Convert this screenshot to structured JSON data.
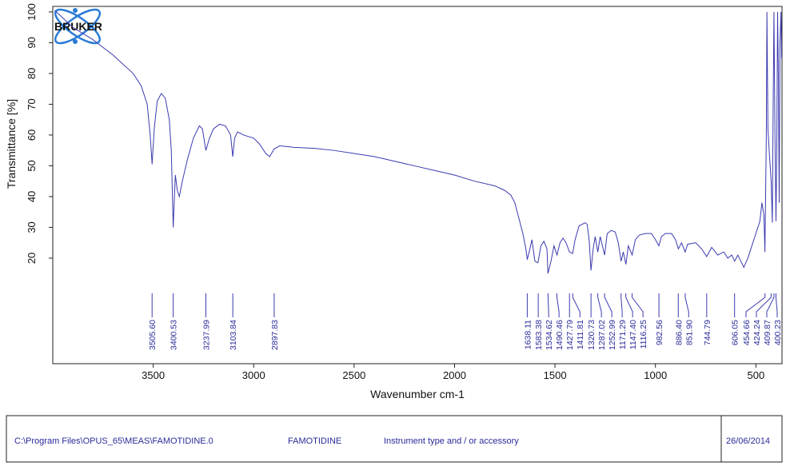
{
  "chart_data": {
    "type": "line",
    "xlabel": "Wavenumber cm-1",
    "ylabel": "Transmittance [%]",
    "logo": "BRUKER",
    "xlim": [
      4000,
      370
    ],
    "xticks": [
      3500,
      3000,
      2500,
      2000,
      1500,
      1000,
      500
    ],
    "ylim": [
      -14.3,
      101.8
    ],
    "yticks": [
      20,
      30,
      40,
      50,
      60,
      70,
      80,
      90,
      100
    ],
    "series": [
      {
        "color": "#3b3bb0",
        "x": [
          3990,
          3900,
          3800,
          3700,
          3600,
          3560,
          3530,
          3515,
          3505.6,
          3495,
          3480,
          3460,
          3440,
          3420,
          3410,
          3400.5,
          3390,
          3380,
          3370,
          3355,
          3330,
          3300,
          3270,
          3255,
          3238,
          3220,
          3200,
          3170,
          3140,
          3115,
          3104,
          3095,
          3080,
          3050,
          3000,
          2970,
          2940,
          2920,
          2898,
          2870,
          2800,
          2700,
          2600,
          2500,
          2400,
          2300,
          2200,
          2100,
          2000,
          1900,
          1800,
          1750,
          1720,
          1700,
          1680,
          1660,
          1645,
          1638,
          1625,
          1615,
          1600,
          1585,
          1570,
          1555,
          1540,
          1535,
          1520,
          1505,
          1490,
          1475,
          1460,
          1445,
          1428,
          1412,
          1400,
          1380,
          1350,
          1340,
          1330,
          1321,
          1310,
          1300,
          1287,
          1275,
          1253,
          1240,
          1220,
          1200,
          1185,
          1171,
          1160,
          1147,
          1135,
          1116,
          1100,
          1080,
          1050,
          1020,
          1000,
          983,
          970,
          950,
          920,
          900,
          886,
          870,
          852,
          840,
          800,
          770,
          745,
          720,
          690,
          660,
          640,
          620,
          606,
          590,
          560,
          540,
          520,
          500,
          480,
          470,
          460,
          455,
          448,
          445,
          440,
          432,
          424,
          418,
          414,
          410,
          405,
          400,
          396,
          392,
          388,
          384,
          380,
          375,
          372
        ],
        "values": [
          100.5,
          95,
          91,
          86,
          80,
          76,
          70,
          60,
          50.5,
          62,
          71,
          73.5,
          72,
          65,
          55,
          30,
          47,
          42,
          40,
          45,
          52,
          59,
          63,
          62,
          55,
          59,
          62,
          63.5,
          63,
          60,
          53,
          59,
          61,
          60,
          59,
          57,
          54,
          53,
          55.5,
          56.5,
          56,
          55.7,
          55,
          54,
          53,
          51.5,
          50,
          48.5,
          47,
          45,
          43.5,
          42,
          40.5,
          38,
          33,
          28,
          23,
          19.5,
          23,
          26,
          19,
          18.5,
          24,
          25.5,
          23,
          15,
          19,
          24,
          21,
          25,
          26.5,
          25,
          22,
          21.5,
          26,
          30.5,
          31.5,
          31,
          26,
          16,
          23,
          27,
          22,
          27,
          21,
          28,
          29,
          28.5,
          25,
          19,
          22,
          18,
          24,
          21,
          26,
          27.5,
          28,
          28,
          26,
          24,
          27,
          28,
          28,
          26,
          23,
          25,
          22,
          24.5,
          25,
          23,
          20.5,
          23.5,
          21,
          22,
          20,
          21,
          19,
          21,
          17,
          20,
          24,
          28,
          32,
          38,
          34,
          22,
          60,
          100,
          62,
          53,
          45,
          31.5,
          70,
          100,
          60,
          32,
          55,
          100,
          80,
          38,
          90,
          100,
          85
        ]
      }
    ],
    "peaks": {
      "values": [
        3505.6,
        3400.53,
        3237.99,
        3103.84,
        2897.83,
        1638.11,
        1583.38,
        1534.62,
        1490.46,
        1427.79,
        1411.81,
        1320.73,
        1287.02,
        1252.99,
        1171.29,
        1147.4,
        1116.25,
        982.56,
        886.4,
        851.9,
        744.79,
        606.05,
        454.66,
        424.24,
        409.87,
        400.23
      ],
      "value_labels": [
        "3505.60",
        "3400.53",
        "3237.99",
        "3103.84",
        "2897.83",
        "1638.11",
        "1583.38",
        "1534.62",
        "1490.46",
        "1427.79",
        "1411.81",
        "1320.73",
        "1287.02",
        "1252.99",
        "1171.29",
        "1147.40",
        "1116.25",
        "982.56",
        "886.40",
        "851.90",
        "744.79",
        "606.05",
        "454.66",
        "424.24",
        "409.87",
        "400.23"
      ]
    }
  },
  "footer": {
    "file": "C:\\Program Files\\OPUS_65\\MEAS\\FAMOTIDINE.0",
    "sample": "FAMOTIDINE",
    "instrument": "Instrument type and / or accessory",
    "date": "26/06/2014"
  }
}
